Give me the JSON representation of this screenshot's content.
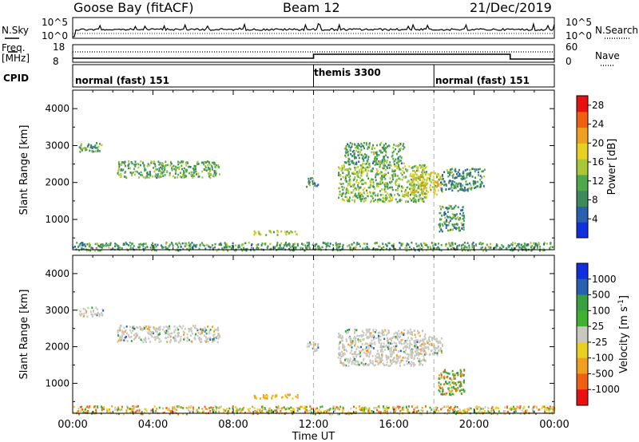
{
  "header": {
    "title": "Goose Bay (fitACF)",
    "beam": "Beam 12",
    "date": "21/Dec/2019"
  },
  "labels": {
    "nsky": "N.Sky",
    "nsearch": "N.Search",
    "freq": "Freq.",
    "mhz": "[MHz]",
    "nave": "Nave",
    "cpid": "CPID"
  },
  "nsky_ticks": {
    "top": "10^5",
    "bottom": "10^0"
  },
  "nsearch_ticks": {
    "top": "10^5",
    "bottom": "10^0"
  },
  "freq_ticks": {
    "top": "18",
    "bottom": "8"
  },
  "nave_ticks": {
    "top": "60",
    "bottom": "0"
  },
  "cpid_segments": [
    {
      "label": "normal (fast) 151",
      "start_hour": 0
    },
    {
      "label": "themis 3300",
      "start_hour": 12
    },
    {
      "label": "normal (fast) 151",
      "start_hour": 18
    }
  ],
  "colors": {
    "power": [
      "#1030e0",
      "#2a60b0",
      "#3f8a5a",
      "#50a84c",
      "#a8c838",
      "#e8d020",
      "#f0a020",
      "#f06010",
      "#e81010"
    ],
    "velocity": [
      "#e81010",
      "#f06010",
      "#f0a020",
      "#e8d020",
      "#c8c8c0",
      "#40b030",
      "#38a040",
      "#2a60b0",
      "#1030e0"
    ]
  },
  "chart_data": [
    {
      "type": "heatmap",
      "title": "",
      "xlabel": "Time UT",
      "ylabel": "Slant Range [km]",
      "xlim": [
        0,
        24
      ],
      "ylim": [
        180,
        4500
      ],
      "x_ticks": [
        "00:00",
        "04:00",
        "08:00",
        "12:00",
        "16:00",
        "20:00",
        "00:00"
      ],
      "y_ticks": [
        1000,
        2000,
        3000,
        4000
      ],
      "colorbar": {
        "label": "Power [dB]",
        "ticks": [
          4,
          8,
          12,
          16,
          20,
          24,
          28
        ],
        "range": [
          0,
          30
        ]
      },
      "scatter_regions": [
        {
          "t": [
            0.3,
            1.5
          ],
          "r": [
            2850,
            3100
          ],
          "level": 10
        },
        {
          "t": [
            2.2,
            7.3
          ],
          "r": [
            2150,
            2600
          ],
          "level": 11
        },
        {
          "t": [
            9.0,
            11.2
          ],
          "r": [
            600,
            720
          ],
          "level": 14
        },
        {
          "t": [
            11.6,
            12.2
          ],
          "r": [
            1900,
            2150
          ],
          "level": 9
        },
        {
          "t": [
            13.2,
            17.6
          ],
          "r": [
            1500,
            2500
          ],
          "level": 13
        },
        {
          "t": [
            13.5,
            16.5
          ],
          "r": [
            2500,
            3100
          ],
          "level": 10
        },
        {
          "t": [
            16.8,
            18.4
          ],
          "r": [
            1700,
            2300
          ],
          "level": 18
        },
        {
          "t": [
            18.2,
            19.5
          ],
          "r": [
            700,
            1400
          ],
          "level": 9
        },
        {
          "t": [
            18.3,
            20.5
          ],
          "r": [
            1800,
            2400
          ],
          "level": 8
        },
        {
          "t": [
            0,
            24
          ],
          "r": [
            180,
            400
          ],
          "level": 10
        }
      ]
    },
    {
      "type": "heatmap",
      "title": "",
      "xlabel": "Time UT",
      "ylabel": "Slant Range [km]",
      "xlim": [
        0,
        24
      ],
      "ylim": [
        180,
        4500
      ],
      "x_ticks": [
        "00:00",
        "04:00",
        "08:00",
        "12:00",
        "16:00",
        "20:00",
        "00:00"
      ],
      "y_ticks": [
        1000,
        2000,
        3000,
        4000
      ],
      "colorbar": {
        "label": "Velocity [m s^-1]",
        "ticks": [
          1000,
          500,
          100,
          25,
          -25,
          -100,
          -500,
          -1000
        ]
      },
      "scatter_regions": [
        {
          "t": [
            0.3,
            1.5
          ],
          "r": [
            2850,
            3100
          ],
          "level": 0
        },
        {
          "t": [
            2.2,
            7.3
          ],
          "r": [
            2150,
            2600
          ],
          "level": 0
        },
        {
          "t": [
            9.0,
            11.2
          ],
          "r": [
            600,
            720
          ],
          "level": -300
        },
        {
          "t": [
            11.6,
            12.2
          ],
          "r": [
            1900,
            2150
          ],
          "level": 0
        },
        {
          "t": [
            13.2,
            17.6
          ],
          "r": [
            1500,
            2500
          ],
          "level": 0
        },
        {
          "t": [
            16.8,
            18.4
          ],
          "r": [
            1800,
            2300
          ],
          "level": 0
        },
        {
          "t": [
            18.2,
            19.5
          ],
          "r": [
            700,
            1400
          ],
          "level": 100
        },
        {
          "t": [
            0,
            24
          ],
          "r": [
            180,
            400
          ],
          "level": -80
        }
      ]
    }
  ]
}
